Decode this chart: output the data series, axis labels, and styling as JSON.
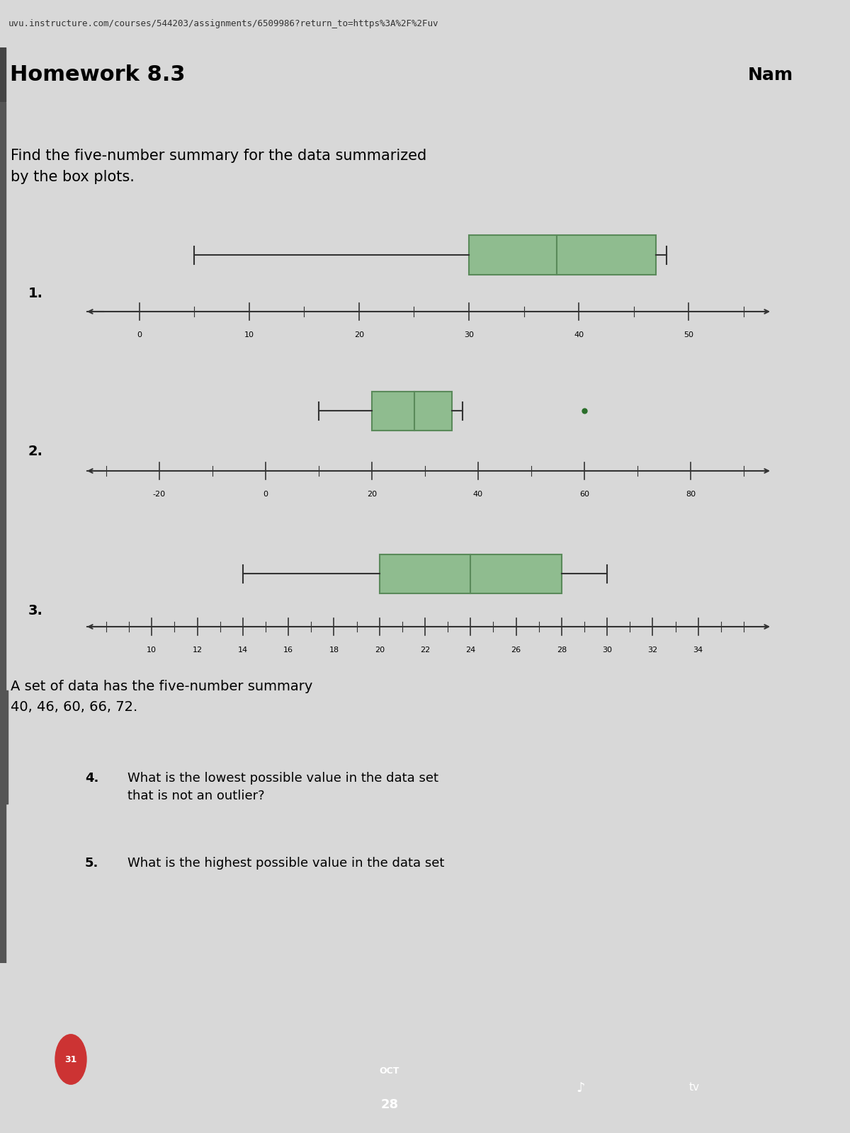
{
  "url_bar": "uvu.instructure.com/courses/544203/assignments/6509986?return_to=https%3A%2F%2Fuv",
  "title": "Homework 8.3",
  "name_label": "Nam",
  "intro_text": "Find the five-number summary for the data summarized\nby the box plots.",
  "boxplot1": {
    "min": 5,
    "q1": 30,
    "median": 38,
    "q3": 47,
    "max": 48,
    "axis_min": -3,
    "axis_max": 55,
    "ticks": [
      0,
      10,
      20,
      30,
      40,
      50
    ],
    "label": "1."
  },
  "boxplot2": {
    "min": 10,
    "q1": 20,
    "median": 28,
    "q3": 35,
    "max": 37,
    "outlier": 60,
    "axis_min": -30,
    "axis_max": 90,
    "ticks": [
      -20,
      0,
      20,
      40,
      60,
      80
    ],
    "label": "2."
  },
  "boxplot3": {
    "min": 14,
    "q1": 20,
    "median": 24,
    "q3": 28,
    "max": 30,
    "axis_min": 8,
    "axis_max": 36,
    "ticks": [
      10,
      12,
      14,
      16,
      18,
      20,
      22,
      24,
      26,
      28,
      30,
      32,
      34
    ],
    "label": "3."
  },
  "section2_text": "A set of data has the five-number summary\n40, 46, 60, 66, 72.",
  "q4_text": "What is the lowest possible value in the data set\nthat is not an outlier?",
  "q5_text": "What is the highest possible value in the data set",
  "q4_num": "4.",
  "q5_num": "5.",
  "box_color": "#8fbc8f",
  "box_edge_color": "#5a8a5a",
  "line_color": "#333333",
  "bg_color": "#d8d8d8",
  "header_bg": "#b0b0b0",
  "url_bg": "#c8c8c8",
  "content_bg": "#e0e0e0",
  "taskbar_bg": "#2a2a2a",
  "taskbar_date": "OCT\n28"
}
